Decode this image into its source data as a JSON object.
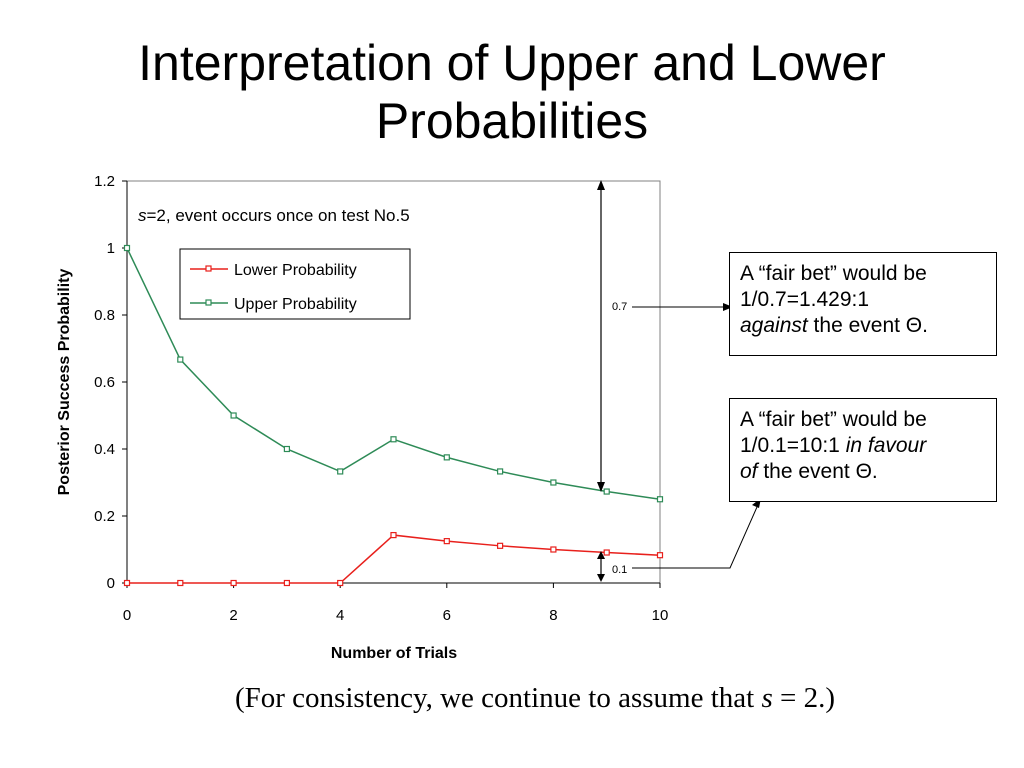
{
  "slide": {
    "title_line1": "Interpretation of Upper and Lower",
    "title_line2": "Probabilities",
    "footer_prefix": "(For consistency, we continue to assume that ",
    "footer_var": "s",
    "footer_suffix": " = 2.)"
  },
  "callouts": {
    "upper": {
      "line1": "A “fair bet” would be",
      "line2": "1/0.7=1.429:1",
      "line3_em": "against",
      "line3_rest": " the event Θ."
    },
    "lower": {
      "line1": "A “fair bet” would be",
      "line2_pre": "1/0.1=10:1 ",
      "line2_em": "in favour",
      "line3_em": "of",
      "line3_rest": " the event Θ."
    }
  },
  "chart_data": {
    "type": "line",
    "xlabel": "Number of Trials",
    "ylabel": "Posterior Success Probability",
    "xlim": [
      0,
      10
    ],
    "ylim": [
      0,
      1.2
    ],
    "x_ticks": [
      "0",
      "2",
      "4",
      "6",
      "8",
      "10"
    ],
    "y_ticks": [
      "0",
      "0.2",
      "0.4",
      "0.6",
      "0.8",
      "1",
      "1.2"
    ],
    "grid": false,
    "legend_position": "top-left",
    "annotation": {
      "var": "s",
      "text": "=2, event occurs once on test No.5"
    },
    "x": [
      0,
      1,
      2,
      3,
      4,
      5,
      6,
      7,
      8,
      9,
      10
    ],
    "series": [
      {
        "name": "Lower Probability",
        "color": "#e8201c",
        "values": [
          0,
          0,
          0,
          0,
          0,
          0.143,
          0.125,
          0.111,
          0.1,
          0.091,
          0.083
        ]
      },
      {
        "name": "Upper Probability",
        "color": "#2e8b57",
        "values": [
          1,
          0.667,
          0.5,
          0.4,
          0.333,
          0.429,
          0.375,
          0.333,
          0.3,
          0.273,
          0.25
        ]
      }
    ],
    "gap_markers": [
      {
        "x": 9,
        "label": "0.7"
      },
      {
        "x": 9,
        "label": "0.1"
      }
    ]
  }
}
